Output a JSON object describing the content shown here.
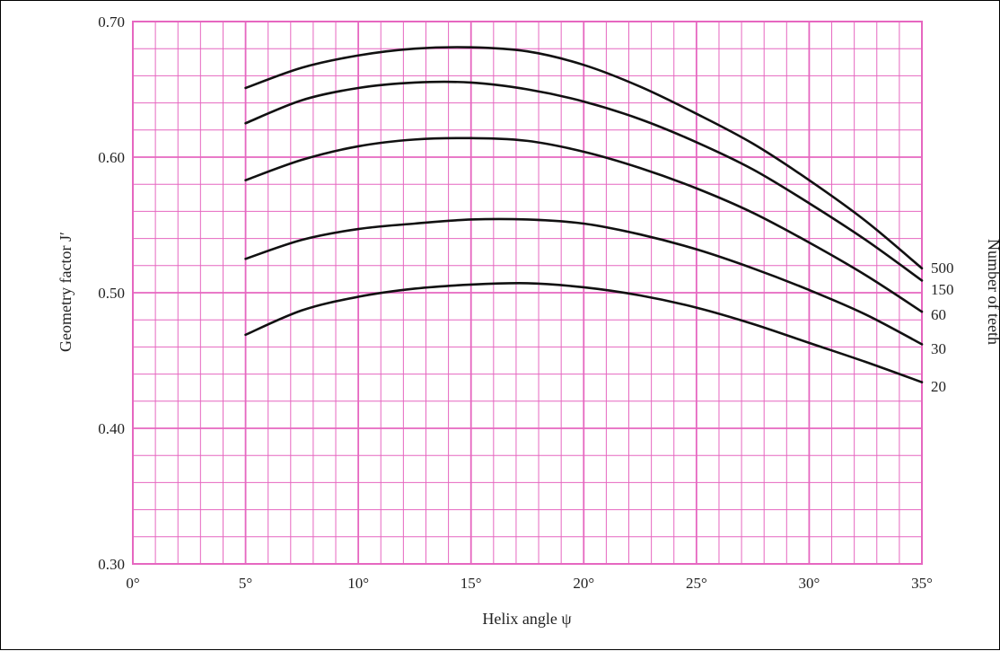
{
  "chart_data": {
    "type": "line",
    "title": "",
    "xlabel": "Helix angle ψ",
    "ylabel": "Geometry factor J′",
    "right_label": "Number of teeth",
    "xlim": [
      0,
      35
    ],
    "ylim": [
      0.3,
      0.7
    ],
    "x_ticks": [
      0,
      5,
      10,
      15,
      20,
      25,
      30,
      35
    ],
    "x_tick_labels": [
      "0°",
      "5°",
      "10°",
      "15°",
      "20°",
      "25°",
      "30°",
      "35°"
    ],
    "y_ticks": [
      0.3,
      0.4,
      0.5,
      0.6,
      0.7
    ],
    "y_tick_labels": [
      "0.30",
      "0.40",
      "0.50",
      "0.60",
      "0.70"
    ],
    "grid": true,
    "minor_grid_x_step": 1,
    "minor_grid_y_step": 0.02,
    "grid_color": "#e667c0",
    "line_color": "#111111",
    "x": [
      5,
      7.5,
      10,
      12.5,
      15,
      17.5,
      20,
      22.5,
      25,
      27.5,
      30,
      32.5,
      35
    ],
    "series": [
      {
        "name": "500",
        "values": [
          0.651,
          0.666,
          0.675,
          0.68,
          0.681,
          0.678,
          0.668,
          0.652,
          0.632,
          0.61,
          0.583,
          0.553,
          0.518
        ]
      },
      {
        "name": "150",
        "values": [
          0.625,
          0.642,
          0.651,
          0.655,
          0.655,
          0.65,
          0.641,
          0.628,
          0.611,
          0.591,
          0.566,
          0.539,
          0.509
        ]
      },
      {
        "name": "60",
        "values": [
          0.583,
          0.598,
          0.608,
          0.613,
          0.614,
          0.612,
          0.604,
          0.592,
          0.577,
          0.559,
          0.537,
          0.513,
          0.486
        ]
      },
      {
        "name": "30",
        "values": [
          0.525,
          0.539,
          0.547,
          0.551,
          0.554,
          0.554,
          0.551,
          0.543,
          0.532,
          0.518,
          0.502,
          0.484,
          0.462
        ]
      },
      {
        "name": "20",
        "values": [
          0.469,
          0.487,
          0.497,
          0.503,
          0.506,
          0.507,
          0.504,
          0.498,
          0.489,
          0.477,
          0.463,
          0.449,
          0.434
        ]
      }
    ]
  }
}
